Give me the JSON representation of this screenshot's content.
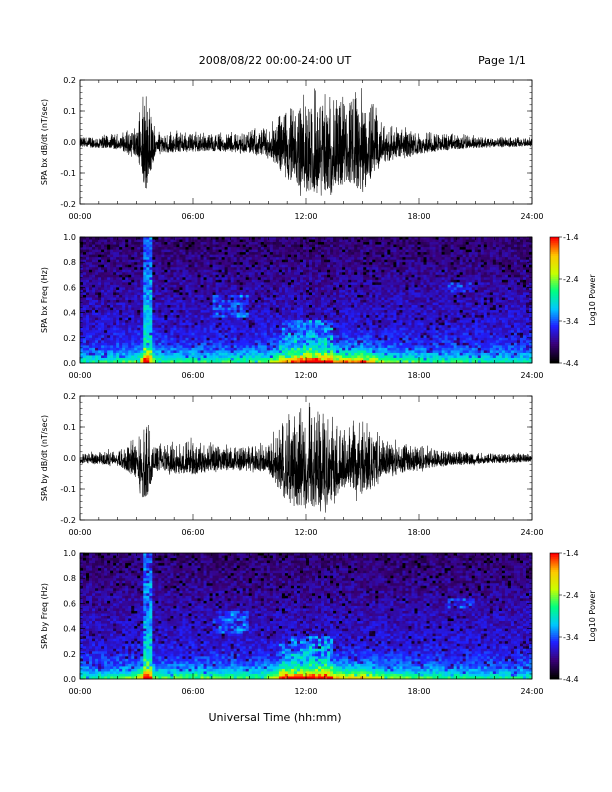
{
  "header": {
    "title": "2008/08/22  00:00-24:00 UT",
    "page": "Page 1/1"
  },
  "xlabel": "Universal Time (hh:mm)",
  "colorbar": {
    "label": "Log10 Power",
    "ticks": [
      "-1.4",
      "-2.4",
      "-3.4",
      "-4.4"
    ],
    "range": [
      -4.4,
      -1.4
    ],
    "colors": [
      "#000000",
      "#3a0078",
      "#2020ff",
      "#00c8ff",
      "#00ff80",
      "#c8ff00",
      "#ffc800",
      "#ff0000"
    ]
  },
  "chart_data": [
    {
      "type": "line",
      "ylabel": "SPA bx dB/dt (nT/sec)",
      "xlim": [
        "00:00",
        "24:00"
      ],
      "ylim": [
        -0.2,
        0.2
      ],
      "x_ticks": [
        "00:00",
        "06:00",
        "12:00",
        "18:00",
        "24:00"
      ],
      "y_ticks": [
        "0.2",
        "0.1",
        "0.0",
        "-0.1",
        "-0.2"
      ],
      "series": [
        {
          "x_hours": [
            0,
            1,
            2,
            3,
            3.5,
            4,
            5,
            6,
            7,
            8,
            9,
            10,
            11,
            12,
            13,
            14,
            15,
            16,
            17,
            18,
            19,
            20,
            21,
            22,
            23,
            24
          ],
          "envelope": [
            0.02,
            0.025,
            0.03,
            0.06,
            0.2,
            0.05,
            0.04,
            0.04,
            0.035,
            0.04,
            0.045,
            0.06,
            0.15,
            0.2,
            0.2,
            0.17,
            0.2,
            0.09,
            0.06,
            0.05,
            0.035,
            0.03,
            0.025,
            0.02,
            0.02,
            0.015
          ]
        }
      ]
    },
    {
      "type": "heatmap",
      "ylabel": "SPA bx Freq (Hz)",
      "xlim": [
        "00:00",
        "24:00"
      ],
      "ylim": [
        0.0,
        1.0
      ],
      "x_ticks": [
        "00:00",
        "06:00",
        "12:00",
        "18:00",
        "24:00"
      ],
      "y_ticks": [
        "1.0",
        "0.8",
        "0.6",
        "0.4",
        "0.2",
        "0.0"
      ],
      "z_label": "Log10 Power",
      "z_range": [
        -4.4,
        -1.4
      ]
    },
    {
      "type": "line",
      "ylabel": "SPA by dB/dt (nT/sec)",
      "xlim": [
        "00:00",
        "24:00"
      ],
      "ylim": [
        -0.2,
        0.2
      ],
      "x_ticks": [
        "00:00",
        "06:00",
        "12:00",
        "18:00",
        "24:00"
      ],
      "y_ticks": [
        "0.2",
        "0.1",
        "0.0",
        "-0.1",
        "-0.2"
      ],
      "series": [
        {
          "x_hours": [
            0,
            1,
            2,
            3,
            3.5,
            4,
            5,
            6,
            7,
            8,
            9,
            10,
            11,
            12,
            13,
            14,
            15,
            16,
            17,
            18,
            19,
            20,
            21,
            22,
            23,
            24
          ],
          "envelope": [
            0.02,
            0.025,
            0.035,
            0.08,
            0.2,
            0.05,
            0.06,
            0.07,
            0.05,
            0.05,
            0.045,
            0.06,
            0.18,
            0.2,
            0.2,
            0.12,
            0.15,
            0.08,
            0.06,
            0.05,
            0.035,
            0.03,
            0.025,
            0.02,
            0.02,
            0.015
          ]
        }
      ]
    },
    {
      "type": "heatmap",
      "ylabel": "SPA by Freq (Hz)",
      "xlim": [
        "00:00",
        "24:00"
      ],
      "ylim": [
        0.0,
        1.0
      ],
      "x_ticks": [
        "00:00",
        "06:00",
        "12:00",
        "18:00",
        "24:00"
      ],
      "y_ticks": [
        "1.0",
        "0.8",
        "0.6",
        "0.4",
        "0.2",
        "0.0"
      ],
      "z_label": "Log10 Power",
      "z_range": [
        -4.4,
        -1.4
      ]
    }
  ]
}
